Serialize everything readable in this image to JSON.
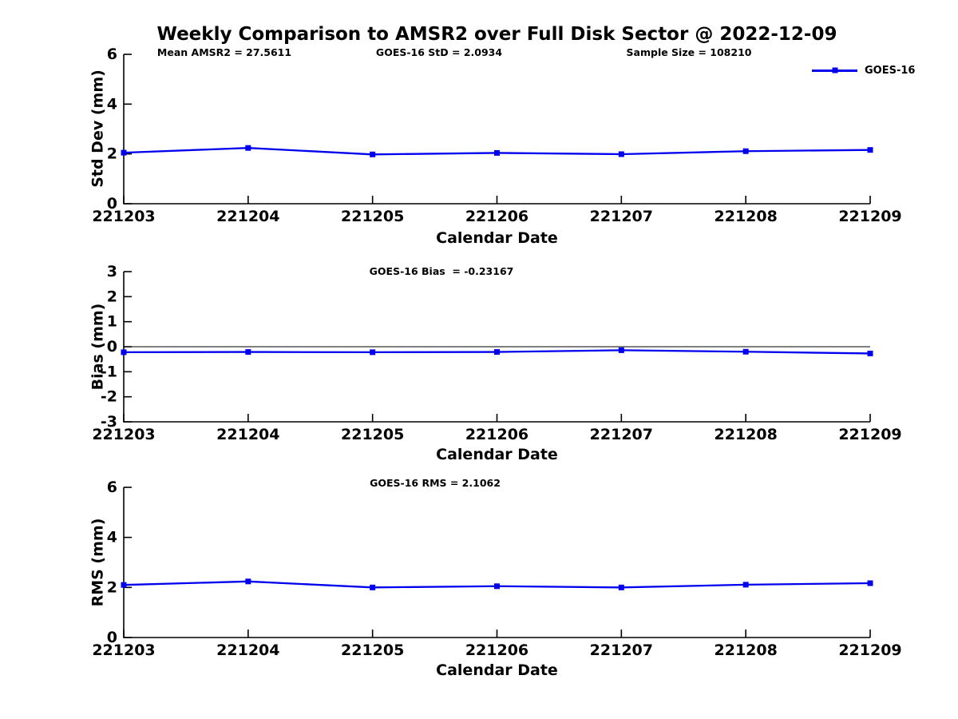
{
  "figure": {
    "title": "Weekly Comparison to AMSR2 over Full Disk Sector @ 2022-12-09",
    "background_color": "#ffffff",
    "text_color": "#000000",
    "line_color": "#0000ee",
    "axis_color": "#000000"
  },
  "chart_data": [
    {
      "type": "line",
      "title": "",
      "annotations": [
        "Mean AMSR2 = 27.5611",
        "GOES-16 StD = 2.0934",
        "Sample Size = 108210"
      ],
      "xlabel": "Calendar Date",
      "ylabel": "Std Dev (mm)",
      "categories": [
        "221203",
        "221204",
        "221205",
        "221206",
        "221207",
        "221208",
        "221209"
      ],
      "series": [
        {
          "name": "GOES-16",
          "values": [
            2.05,
            2.24,
            1.98,
            2.04,
            1.99,
            2.11,
            2.16
          ]
        }
      ],
      "ylim": [
        0,
        6
      ],
      "yticks": [
        0,
        2,
        4,
        6
      ],
      "grid": false,
      "zero_line": false,
      "marker": "square",
      "legend": {
        "label": "GOES-16",
        "position": "top-right"
      }
    },
    {
      "type": "line",
      "title": "GOES-16 Bias  = -0.23167",
      "annotations": [],
      "xlabel": "Calendar Date",
      "ylabel": "Bias (mm)",
      "categories": [
        "221203",
        "221204",
        "221205",
        "221206",
        "221207",
        "221208",
        "221209"
      ],
      "series": [
        {
          "name": "GOES-16",
          "values": [
            -0.22,
            -0.21,
            -0.22,
            -0.21,
            -0.14,
            -0.2,
            -0.27
          ]
        }
      ],
      "ylim": [
        -3,
        3
      ],
      "yticks": [
        -3,
        -2,
        -1,
        0,
        1,
        2,
        3
      ],
      "grid": false,
      "zero_line": true,
      "marker": "square",
      "legend": null
    },
    {
      "type": "line",
      "title": "GOES-16 RMS = 2.1062",
      "annotations": [],
      "xlabel": "Calendar Date",
      "ylabel": "RMS (mm)",
      "categories": [
        "221203",
        "221204",
        "221205",
        "221206",
        "221207",
        "221208",
        "221209"
      ],
      "series": [
        {
          "name": "GOES-16",
          "values": [
            2.1,
            2.24,
            2.0,
            2.05,
            2.0,
            2.11,
            2.17
          ]
        }
      ],
      "ylim": [
        0,
        6
      ],
      "yticks": [
        0,
        2,
        4,
        6
      ],
      "grid": false,
      "zero_line": false,
      "marker": "square",
      "legend": null
    }
  ]
}
